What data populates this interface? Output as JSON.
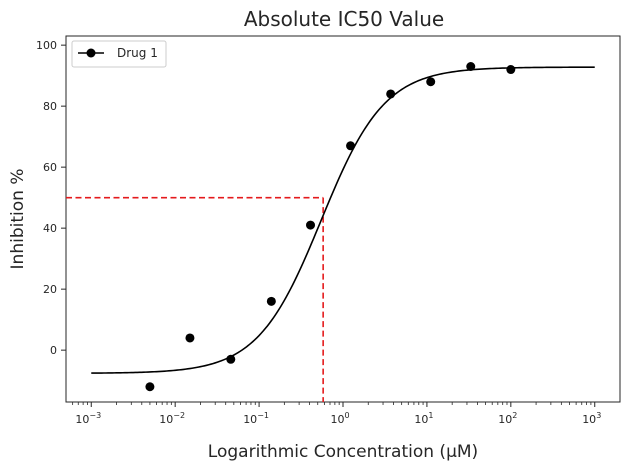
{
  "chart_data": {
    "type": "scatter",
    "title": "Absolute IC50 Value",
    "xlabel": "Logarithmic Concentration (μM)",
    "ylabel": "Inhibition %",
    "x_scale": "log",
    "xlim": [
      0.0005,
      2000
    ],
    "ylim": [
      -17,
      103
    ],
    "x_ticks": [
      {
        "value": 0.001,
        "base": "10",
        "exp": "−3"
      },
      {
        "value": 0.01,
        "base": "10",
        "exp": "−2"
      },
      {
        "value": 0.1,
        "base": "10",
        "exp": "−1"
      },
      {
        "value": 1,
        "base": "10",
        "exp": "0"
      },
      {
        "value": 10,
        "base": "10",
        "exp": "1"
      },
      {
        "value": 100,
        "base": "10",
        "exp": "2"
      },
      {
        "value": 1000,
        "base": "10",
        "exp": "3"
      }
    ],
    "y_ticks": [
      0,
      20,
      40,
      60,
      80,
      100
    ],
    "y_tick_labels": [
      "0",
      "20",
      "40",
      "60",
      "80",
      "100"
    ],
    "grid": false,
    "legend_position": "top-left",
    "series": [
      {
        "name": "Drug 1",
        "color": "#000000",
        "x": [
          0.005,
          0.015,
          0.046,
          0.14,
          0.41,
          1.23,
          3.7,
          11.1,
          33.3,
          100
        ],
        "y": [
          -12,
          4,
          -3,
          16,
          41,
          67,
          84,
          88,
          93,
          92
        ]
      }
    ],
    "fit_curve": {
      "model": "4PL",
      "bottom": -7.6,
      "top": 92.8,
      "log_ic50": -0.26,
      "hill": 1.15,
      "x_range": [
        0.001,
        1000
      ],
      "color": "#000000"
    },
    "ic50_marker": {
      "x": 0.58,
      "y": 50,
      "color": "#e41a1c"
    }
  }
}
